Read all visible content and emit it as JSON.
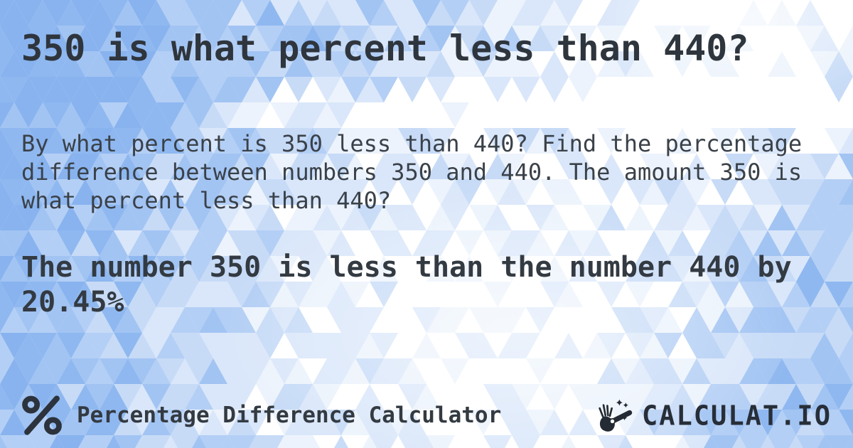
{
  "card": {
    "title": "350 is what percent less than 440?",
    "description": "By what percent is 350 less than 440? Find the percentage difference between numbers 350 and 440. The amount 350 is what percent less than 440?",
    "answer": "The number 350 is less than the number 440 by 20.45%",
    "values": {
      "compared_number": "350",
      "base_number": "440",
      "percent_less": "20.45%"
    }
  },
  "footer": {
    "calculator_name": "Percentage Difference Calculator",
    "brand_name": "CALCULAT.IO",
    "icons": {
      "left": "percent-icon",
      "brand": "magic-wand-hand-icon"
    }
  },
  "colors": {
    "title_text": "#2f353d",
    "body_text": "#3a4149",
    "answer_text": "#333a42",
    "brand_text": "#272e38",
    "pattern_blue_deep": "#8ab2ef",
    "pattern_background": "#ffffff"
  }
}
